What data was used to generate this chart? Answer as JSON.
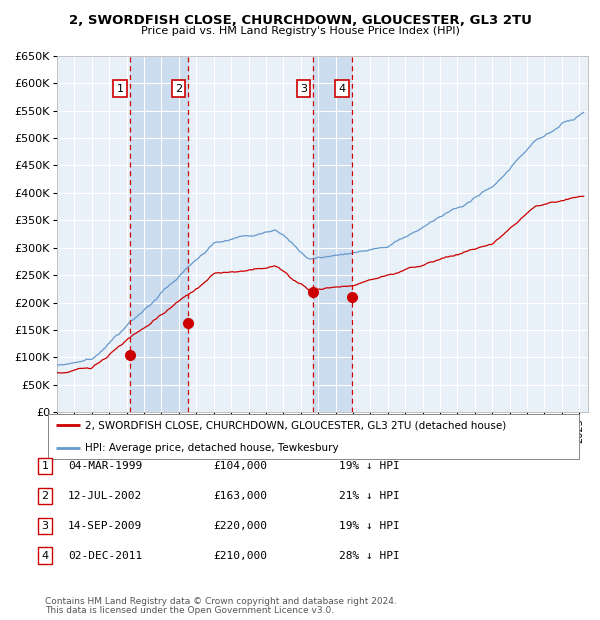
{
  "title1": "2, SWORDFISH CLOSE, CHURCHDOWN, GLOUCESTER, GL3 2TU",
  "title2": "Price paid vs. HM Land Registry's House Price Index (HPI)",
  "legend_red": "2, SWORDFISH CLOSE, CHURCHDOWN, GLOUCESTER, GL3 2TU (detached house)",
  "legend_blue": "HPI: Average price, detached house, Tewkesbury",
  "footer1": "Contains HM Land Registry data © Crown copyright and database right 2024.",
  "footer2": "This data is licensed under the Open Government Licence v3.0.",
  "transactions": [
    {
      "num": 1,
      "date": "04-MAR-1999",
      "price": 104000,
      "pct": "19%",
      "dir": "↓"
    },
    {
      "num": 2,
      "date": "12-JUL-2002",
      "price": 163000,
      "pct": "21%",
      "dir": "↓"
    },
    {
      "num": 3,
      "date": "14-SEP-2009",
      "price": 220000,
      "pct": "19%",
      "dir": "↓"
    },
    {
      "num": 4,
      "date": "02-DEC-2011",
      "price": 210000,
      "pct": "28%",
      "dir": "↓"
    }
  ],
  "transaction_dates_decimal": [
    1999.17,
    2002.53,
    2009.71,
    2011.92
  ],
  "transaction_prices": [
    104000,
    163000,
    220000,
    210000
  ],
  "ylim": [
    0,
    650000
  ],
  "yticks": [
    0,
    50000,
    100000,
    150000,
    200000,
    250000,
    300000,
    350000,
    400000,
    450000,
    500000,
    550000,
    600000,
    650000
  ],
  "red_color": "#cc0000",
  "blue_color": "#6699cc",
  "bg_color": "#e8f0f8",
  "grid_color": "#ffffff",
  "shade_color": "#ccddf0"
}
